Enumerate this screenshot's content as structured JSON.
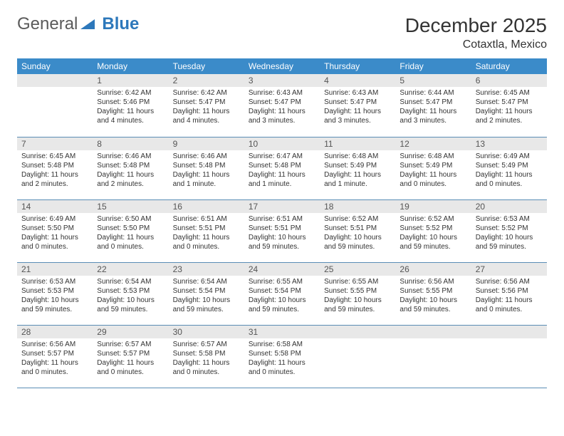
{
  "logo": {
    "general": "General",
    "blue": "Blue"
  },
  "title": "December 2025",
  "subtitle": "Cotaxtla, Mexico",
  "colors": {
    "header_bg": "#3b8bc9",
    "header_text": "#ffffff",
    "daynum_bg": "#e8e8e8",
    "daynum_text": "#555555",
    "body_text": "#333333",
    "rule": "#5a8db5",
    "logo_gray": "#5a5a5a",
    "logo_blue": "#2d78bb"
  },
  "dayNames": [
    "Sunday",
    "Monday",
    "Tuesday",
    "Wednesday",
    "Thursday",
    "Friday",
    "Saturday"
  ],
  "weeks": [
    [
      {
        "n": "",
        "sr": "",
        "ss": "",
        "dl": ""
      },
      {
        "n": "1",
        "sr": "Sunrise: 6:42 AM",
        "ss": "Sunset: 5:46 PM",
        "dl": "Daylight: 11 hours and 4 minutes."
      },
      {
        "n": "2",
        "sr": "Sunrise: 6:42 AM",
        "ss": "Sunset: 5:47 PM",
        "dl": "Daylight: 11 hours and 4 minutes."
      },
      {
        "n": "3",
        "sr": "Sunrise: 6:43 AM",
        "ss": "Sunset: 5:47 PM",
        "dl": "Daylight: 11 hours and 3 minutes."
      },
      {
        "n": "4",
        "sr": "Sunrise: 6:43 AM",
        "ss": "Sunset: 5:47 PM",
        "dl": "Daylight: 11 hours and 3 minutes."
      },
      {
        "n": "5",
        "sr": "Sunrise: 6:44 AM",
        "ss": "Sunset: 5:47 PM",
        "dl": "Daylight: 11 hours and 3 minutes."
      },
      {
        "n": "6",
        "sr": "Sunrise: 6:45 AM",
        "ss": "Sunset: 5:47 PM",
        "dl": "Daylight: 11 hours and 2 minutes."
      }
    ],
    [
      {
        "n": "7",
        "sr": "Sunrise: 6:45 AM",
        "ss": "Sunset: 5:48 PM",
        "dl": "Daylight: 11 hours and 2 minutes."
      },
      {
        "n": "8",
        "sr": "Sunrise: 6:46 AM",
        "ss": "Sunset: 5:48 PM",
        "dl": "Daylight: 11 hours and 2 minutes."
      },
      {
        "n": "9",
        "sr": "Sunrise: 6:46 AM",
        "ss": "Sunset: 5:48 PM",
        "dl": "Daylight: 11 hours and 1 minute."
      },
      {
        "n": "10",
        "sr": "Sunrise: 6:47 AM",
        "ss": "Sunset: 5:48 PM",
        "dl": "Daylight: 11 hours and 1 minute."
      },
      {
        "n": "11",
        "sr": "Sunrise: 6:48 AM",
        "ss": "Sunset: 5:49 PM",
        "dl": "Daylight: 11 hours and 1 minute."
      },
      {
        "n": "12",
        "sr": "Sunrise: 6:48 AM",
        "ss": "Sunset: 5:49 PM",
        "dl": "Daylight: 11 hours and 0 minutes."
      },
      {
        "n": "13",
        "sr": "Sunrise: 6:49 AM",
        "ss": "Sunset: 5:49 PM",
        "dl": "Daylight: 11 hours and 0 minutes."
      }
    ],
    [
      {
        "n": "14",
        "sr": "Sunrise: 6:49 AM",
        "ss": "Sunset: 5:50 PM",
        "dl": "Daylight: 11 hours and 0 minutes."
      },
      {
        "n": "15",
        "sr": "Sunrise: 6:50 AM",
        "ss": "Sunset: 5:50 PM",
        "dl": "Daylight: 11 hours and 0 minutes."
      },
      {
        "n": "16",
        "sr": "Sunrise: 6:51 AM",
        "ss": "Sunset: 5:51 PM",
        "dl": "Daylight: 11 hours and 0 minutes."
      },
      {
        "n": "17",
        "sr": "Sunrise: 6:51 AM",
        "ss": "Sunset: 5:51 PM",
        "dl": "Daylight: 10 hours and 59 minutes."
      },
      {
        "n": "18",
        "sr": "Sunrise: 6:52 AM",
        "ss": "Sunset: 5:51 PM",
        "dl": "Daylight: 10 hours and 59 minutes."
      },
      {
        "n": "19",
        "sr": "Sunrise: 6:52 AM",
        "ss": "Sunset: 5:52 PM",
        "dl": "Daylight: 10 hours and 59 minutes."
      },
      {
        "n": "20",
        "sr": "Sunrise: 6:53 AM",
        "ss": "Sunset: 5:52 PM",
        "dl": "Daylight: 10 hours and 59 minutes."
      }
    ],
    [
      {
        "n": "21",
        "sr": "Sunrise: 6:53 AM",
        "ss": "Sunset: 5:53 PM",
        "dl": "Daylight: 10 hours and 59 minutes."
      },
      {
        "n": "22",
        "sr": "Sunrise: 6:54 AM",
        "ss": "Sunset: 5:53 PM",
        "dl": "Daylight: 10 hours and 59 minutes."
      },
      {
        "n": "23",
        "sr": "Sunrise: 6:54 AM",
        "ss": "Sunset: 5:54 PM",
        "dl": "Daylight: 10 hours and 59 minutes."
      },
      {
        "n": "24",
        "sr": "Sunrise: 6:55 AM",
        "ss": "Sunset: 5:54 PM",
        "dl": "Daylight: 10 hours and 59 minutes."
      },
      {
        "n": "25",
        "sr": "Sunrise: 6:55 AM",
        "ss": "Sunset: 5:55 PM",
        "dl": "Daylight: 10 hours and 59 minutes."
      },
      {
        "n": "26",
        "sr": "Sunrise: 6:56 AM",
        "ss": "Sunset: 5:55 PM",
        "dl": "Daylight: 10 hours and 59 minutes."
      },
      {
        "n": "27",
        "sr": "Sunrise: 6:56 AM",
        "ss": "Sunset: 5:56 PM",
        "dl": "Daylight: 11 hours and 0 minutes."
      }
    ],
    [
      {
        "n": "28",
        "sr": "Sunrise: 6:56 AM",
        "ss": "Sunset: 5:57 PM",
        "dl": "Daylight: 11 hours and 0 minutes."
      },
      {
        "n": "29",
        "sr": "Sunrise: 6:57 AM",
        "ss": "Sunset: 5:57 PM",
        "dl": "Daylight: 11 hours and 0 minutes."
      },
      {
        "n": "30",
        "sr": "Sunrise: 6:57 AM",
        "ss": "Sunset: 5:58 PM",
        "dl": "Daylight: 11 hours and 0 minutes."
      },
      {
        "n": "31",
        "sr": "Sunrise: 6:58 AM",
        "ss": "Sunset: 5:58 PM",
        "dl": "Daylight: 11 hours and 0 minutes."
      },
      {
        "n": "",
        "sr": "",
        "ss": "",
        "dl": ""
      },
      {
        "n": "",
        "sr": "",
        "ss": "",
        "dl": ""
      },
      {
        "n": "",
        "sr": "",
        "ss": "",
        "dl": ""
      }
    ]
  ]
}
